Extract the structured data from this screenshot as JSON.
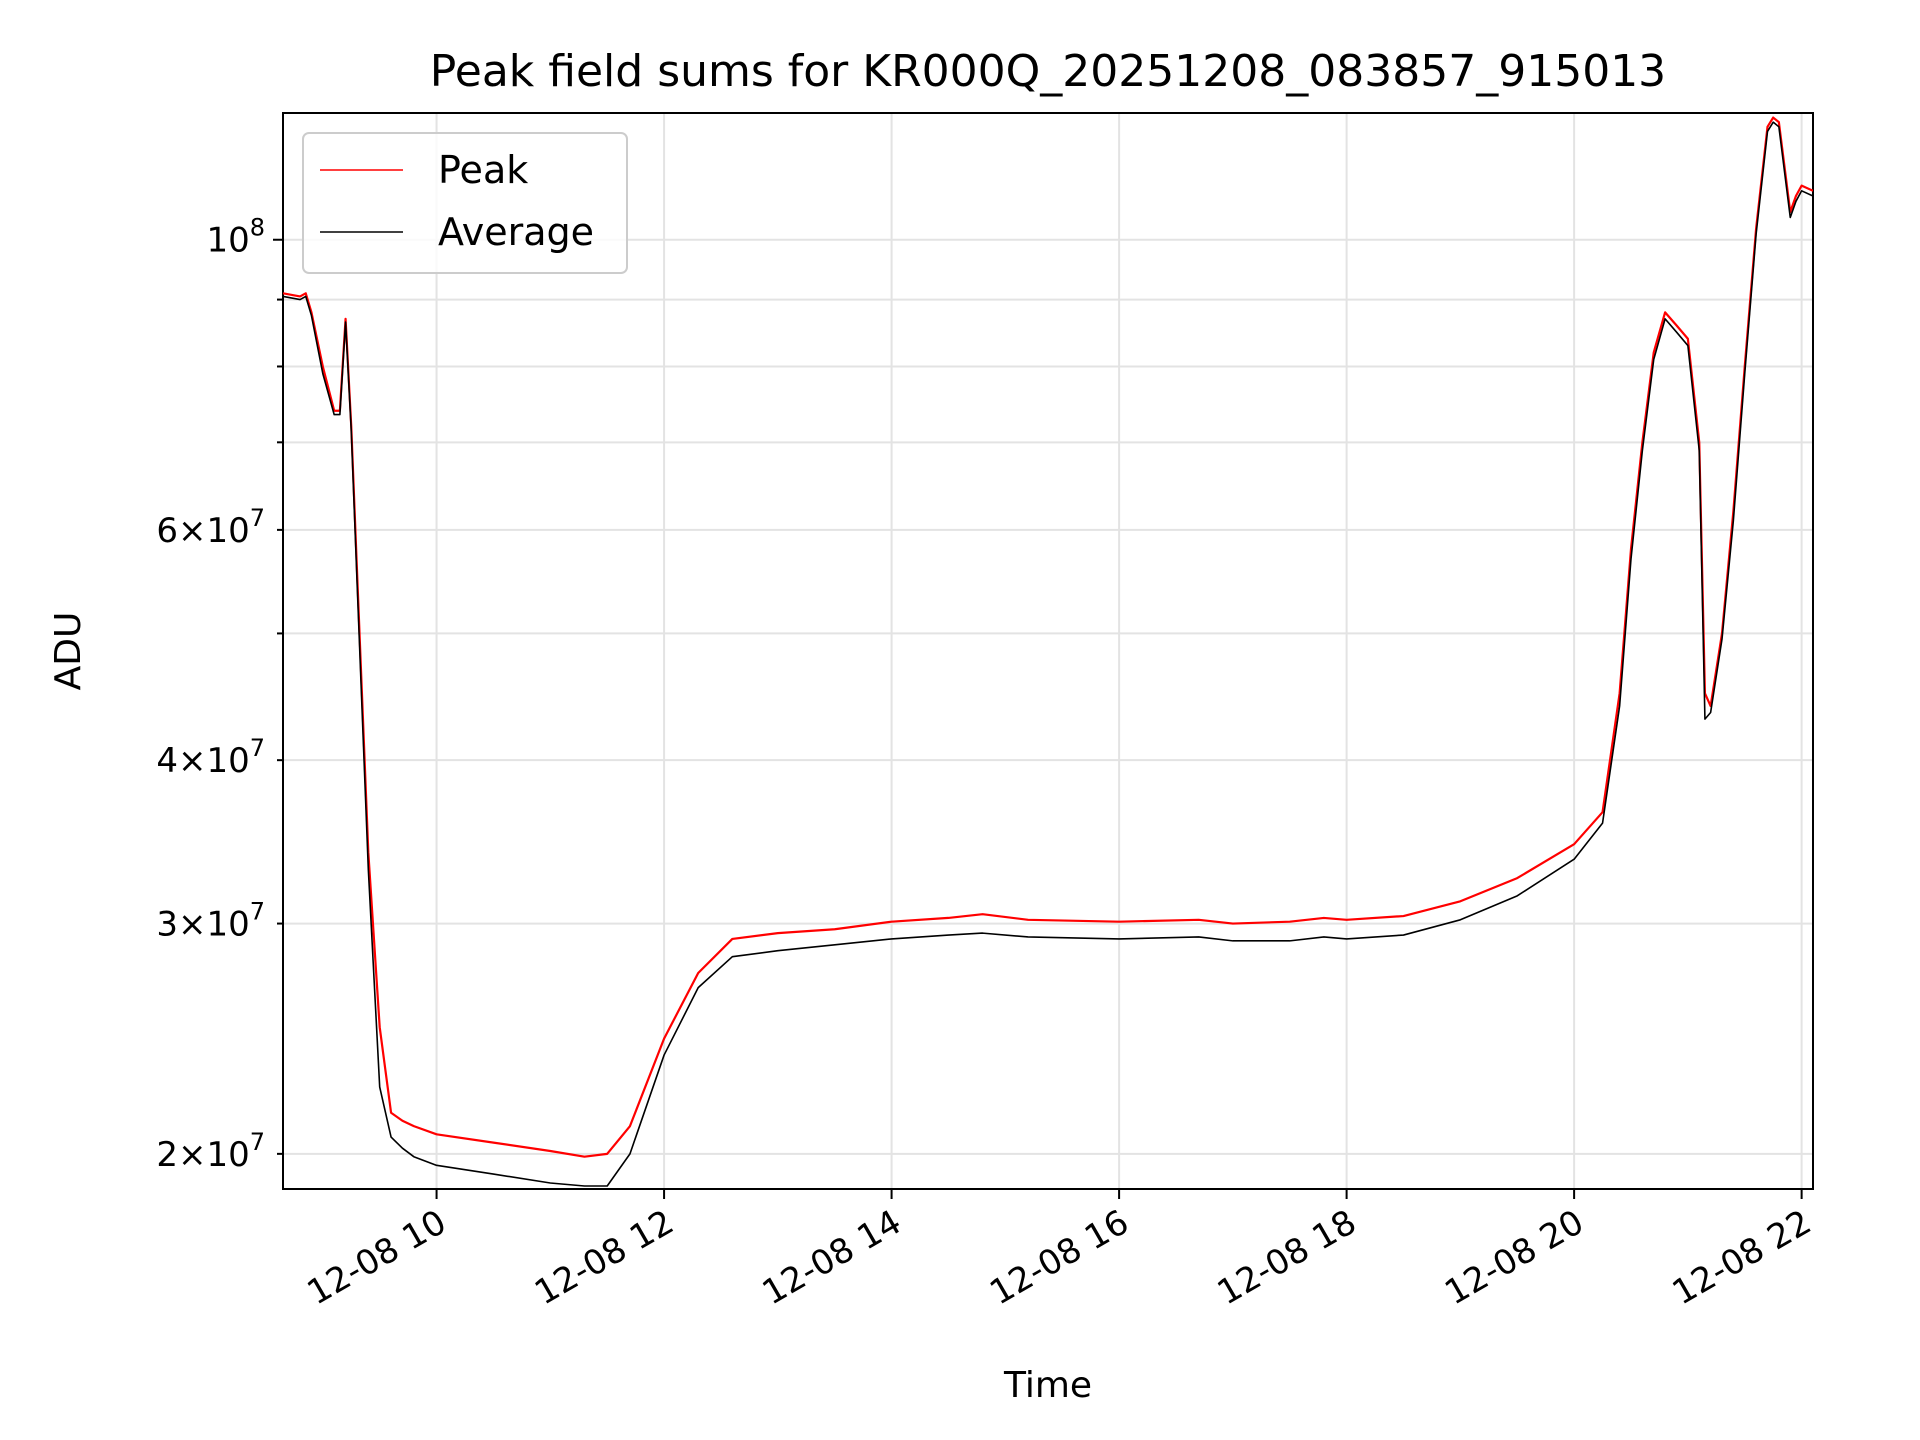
{
  "chart_data": {
    "type": "line",
    "title": "Peak field sums for KR000Q_20251208_083857_915013",
    "xlabel": "Time",
    "ylabel": "ADU",
    "yscale": "log",
    "xlim": [
      8.65,
      22.1
    ],
    "ylim": [
      18800000,
      125000000
    ],
    "grid": true,
    "legend_position": "upper-left",
    "x_unit": "hours on 2025-12-08",
    "x_ticks": [
      {
        "value": 10,
        "label": "12-08 10"
      },
      {
        "value": 12,
        "label": "12-08 12"
      },
      {
        "value": 14,
        "label": "12-08 14"
      },
      {
        "value": 16,
        "label": "12-08 16"
      },
      {
        "value": 18,
        "label": "12-08 18"
      },
      {
        "value": 20,
        "label": "12-08 20"
      },
      {
        "value": 22,
        "label": "12-08 22"
      }
    ],
    "y_major_ticks": [
      {
        "value": 100000000,
        "mantissa": "",
        "exponent": "8"
      }
    ],
    "y_minor_labeled_ticks": [
      {
        "value": 20000000,
        "mantissa": "2",
        "exponent": "7"
      },
      {
        "value": 30000000,
        "mantissa": "3",
        "exponent": "7"
      },
      {
        "value": 40000000,
        "mantissa": "4",
        "exponent": "7"
      },
      {
        "value": 60000000,
        "mantissa": "6",
        "exponent": "7"
      }
    ],
    "y_minor_unlabeled_ticks": [
      50000000,
      70000000,
      80000000,
      90000000
    ],
    "series": [
      {
        "name": "Peak",
        "color": "#ff0000",
        "x": [
          8.65,
          8.8,
          8.85,
          8.9,
          9.0,
          9.1,
          9.15,
          9.2,
          9.25,
          9.3,
          9.4,
          9.5,
          9.6,
          9.7,
          9.8,
          10.0,
          10.5,
          11.0,
          11.3,
          11.5,
          11.7,
          12.0,
          12.3,
          12.6,
          13.0,
          13.5,
          14.0,
          14.5,
          14.8,
          15.2,
          16.0,
          16.7,
          17.0,
          17.5,
          17.8,
          18.0,
          18.5,
          19.0,
          19.5,
          20.0,
          20.25,
          20.4,
          20.5,
          20.6,
          20.7,
          20.8,
          20.9,
          21.0,
          21.1,
          21.15,
          21.2,
          21.3,
          21.4,
          21.5,
          21.6,
          21.7,
          21.75,
          21.8,
          21.9,
          21.95,
          22.0,
          22.1
        ],
        "y": [
          91000000,
          90500000,
          91000000,
          88000000,
          80000000,
          74000000,
          74000000,
          87000000,
          72000000,
          56000000,
          34000000,
          25000000,
          21500000,
          21200000,
          21000000,
          20700000,
          20400000,
          20100000,
          19900000,
          20000000,
          21000000,
          24500000,
          27500000,
          29200000,
          29500000,
          29700000,
          30100000,
          30300000,
          30500000,
          30200000,
          30100000,
          30200000,
          30000000,
          30100000,
          30300000,
          30200000,
          30400000,
          31200000,
          32500000,
          34500000,
          36500000,
          45000000,
          58000000,
          70000000,
          82000000,
          88000000,
          86000000,
          84000000,
          70000000,
          45000000,
          44000000,
          50000000,
          62000000,
          80000000,
          102000000,
          122000000,
          124000000,
          123000000,
          105000000,
          108000000,
          110000000,
          109000000
        ]
      },
      {
        "name": "Average",
        "color": "#000000",
        "x": [
          8.65,
          8.8,
          8.85,
          8.9,
          9.0,
          9.1,
          9.15,
          9.2,
          9.25,
          9.3,
          9.4,
          9.5,
          9.6,
          9.7,
          9.8,
          10.0,
          10.5,
          11.0,
          11.3,
          11.5,
          11.7,
          12.0,
          12.3,
          12.6,
          13.0,
          13.5,
          14.0,
          14.5,
          14.8,
          15.2,
          16.0,
          16.7,
          17.0,
          17.5,
          17.8,
          18.0,
          18.5,
          19.0,
          19.5,
          20.0,
          20.25,
          20.4,
          20.5,
          20.6,
          20.7,
          20.8,
          20.9,
          21.0,
          21.1,
          21.15,
          21.2,
          21.3,
          21.4,
          21.5,
          21.6,
          21.7,
          21.75,
          21.8,
          21.9,
          21.95,
          22.0,
          22.1
        ],
        "y": [
          90500000,
          90000000,
          90500000,
          87500000,
          79000000,
          73500000,
          73500000,
          86500000,
          71500000,
          55000000,
          33000000,
          22500000,
          20600000,
          20200000,
          19900000,
          19600000,
          19300000,
          19000000,
          18900000,
          18900000,
          20000000,
          23800000,
          26800000,
          28300000,
          28600000,
          28900000,
          29200000,
          29400000,
          29500000,
          29300000,
          29200000,
          29300000,
          29100000,
          29100000,
          29300000,
          29200000,
          29400000,
          30200000,
          31500000,
          33600000,
          35800000,
          44000000,
          57000000,
          69000000,
          81000000,
          87000000,
          85000000,
          83000000,
          69000000,
          43000000,
          43500000,
          49500000,
          61000000,
          79000000,
          101000000,
          121000000,
          123000000,
          122000000,
          104000000,
          107000000,
          109000000,
          108000000
        ]
      }
    ]
  }
}
